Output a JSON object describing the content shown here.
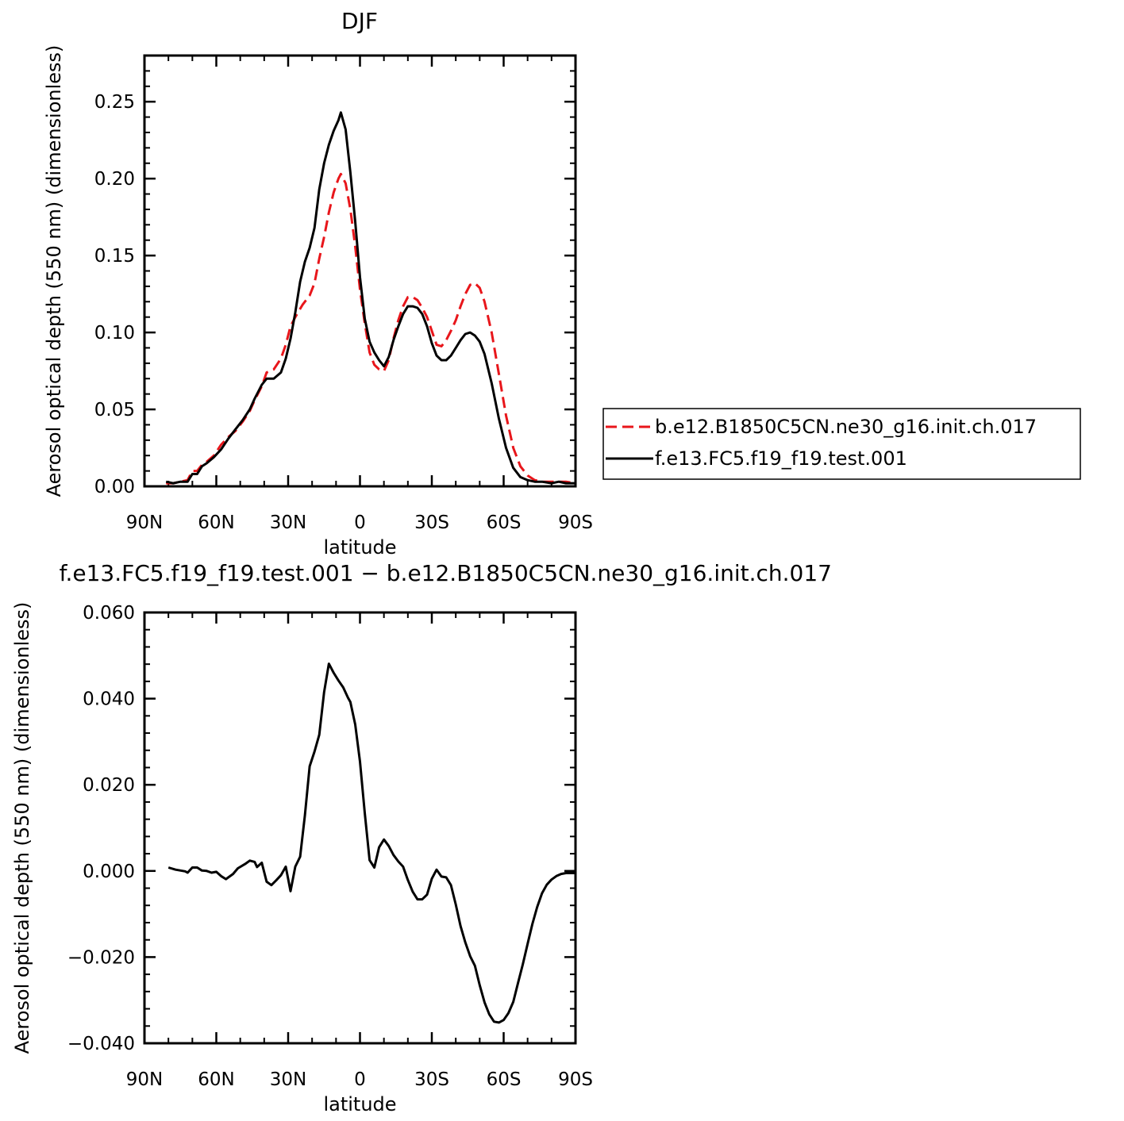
{
  "chart_data": [
    {
      "type": "line",
      "title": "DJF",
      "xlabel": "latitude",
      "ylabel": "Aerosol optical depth (550 nm) (dimensionless)",
      "xlim": [
        90,
        -90
      ],
      "ylim": [
        0,
        0.28
      ],
      "x_ticks": [
        90,
        60,
        30,
        0,
        -30,
        -60,
        -90
      ],
      "x_tick_labels": [
        "90N",
        "60N",
        "30N",
        "0",
        "30S",
        "60S",
        "90S"
      ],
      "y_ticks": [
        0,
        0.05,
        0.1,
        0.15,
        0.2,
        0.25
      ],
      "y_tick_labels": [
        "0.00",
        "0.05",
        "0.10",
        "0.15",
        "0.20",
        "0.25"
      ],
      "legend_placement": "right",
      "series": [
        {
          "name": "b.e12.B1850C5CN.ne30_g16.init.ch.017",
          "color": "#e8161b",
          "dash": "dashed",
          "points": [
            [
              81,
              0.002
            ],
            [
              78,
              0.002
            ],
            [
              75,
              0.003
            ],
            [
              72,
              0.004
            ],
            [
              70,
              0.01
            ],
            [
              68,
              0.01
            ],
            [
              66,
              0.014
            ],
            [
              64,
              0.016
            ],
            [
              61,
              0.02
            ],
            [
              58,
              0.027
            ],
            [
              55,
              0.032
            ],
            [
              52,
              0.036
            ],
            [
              49,
              0.042
            ],
            [
              46,
              0.049
            ],
            [
              44,
              0.056
            ],
            [
              41,
              0.065
            ],
            [
              39,
              0.074
            ],
            [
              36,
              0.076
            ],
            [
              33,
              0.083
            ],
            [
              31,
              0.092
            ],
            [
              29,
              0.104
            ],
            [
              27,
              0.11
            ],
            [
              24,
              0.118
            ],
            [
              21,
              0.124
            ],
            [
              19,
              0.132
            ],
            [
              17,
              0.148
            ],
            [
              15,
              0.162
            ],
            [
              13,
              0.178
            ],
            [
              11,
              0.191
            ],
            [
              9,
              0.2
            ],
            [
              8,
              0.203
            ],
            [
              6,
              0.197
            ],
            [
              4,
              0.18
            ],
            [
              2,
              0.156
            ],
            [
              0,
              0.128
            ],
            [
              -2,
              0.106
            ],
            [
              -4,
              0.087
            ],
            [
              -6,
              0.079
            ],
            [
              -8,
              0.076
            ],
            [
              -10,
              0.075
            ],
            [
              -12,
              0.082
            ],
            [
              -14,
              0.096
            ],
            [
              -16,
              0.108
            ],
            [
              -18,
              0.117
            ],
            [
              -20,
              0.123
            ],
            [
              -22,
              0.123
            ],
            [
              -24,
              0.121
            ],
            [
              -26,
              0.116
            ],
            [
              -28,
              0.11
            ],
            [
              -30,
              0.101
            ],
            [
              -32,
              0.092
            ],
            [
              -34,
              0.091
            ],
            [
              -36,
              0.095
            ],
            [
              -38,
              0.101
            ],
            [
              -40,
              0.108
            ],
            [
              -42,
              0.117
            ],
            [
              -44,
              0.125
            ],
            [
              -46,
              0.131
            ],
            [
              -48,
              0.132
            ],
            [
              -50,
              0.129
            ],
            [
              -52,
              0.12
            ],
            [
              -55,
              0.1
            ],
            [
              -58,
              0.073
            ],
            [
              -61,
              0.046
            ],
            [
              -64,
              0.025
            ],
            [
              -67,
              0.013
            ],
            [
              -70,
              0.007
            ],
            [
              -73,
              0.004
            ],
            [
              -76,
              0.003
            ],
            [
              -80,
              0.003
            ],
            [
              -83,
              0.003
            ],
            [
              -86,
              0.003
            ],
            [
              -90,
              0.002
            ]
          ]
        },
        {
          "name": "f.e13.FC5.f19_f19.test.001",
          "color": "#000000",
          "dash": "solid",
          "points": [
            [
              81,
              0.003
            ],
            [
              78,
              0.002
            ],
            [
              75,
              0.003
            ],
            [
              72,
              0.003
            ],
            [
              70,
              0.008
            ],
            [
              68,
              0.008
            ],
            [
              66,
              0.013
            ],
            [
              64,
              0.015
            ],
            [
              61,
              0.019
            ],
            [
              58,
              0.024
            ],
            [
              55,
              0.031
            ],
            [
              52,
              0.037
            ],
            [
              49,
              0.043
            ],
            [
              46,
              0.05
            ],
            [
              44,
              0.057
            ],
            [
              41,
              0.066
            ],
            [
              39,
              0.07
            ],
            [
              36,
              0.07
            ],
            [
              33,
              0.074
            ],
            [
              31,
              0.083
            ],
            [
              29,
              0.096
            ],
            [
              27,
              0.113
            ],
            [
              25,
              0.133
            ],
            [
              23,
              0.146
            ],
            [
              21,
              0.155
            ],
            [
              19,
              0.168
            ],
            [
              17,
              0.193
            ],
            [
              15,
              0.21
            ],
            [
              13,
              0.222
            ],
            [
              11,
              0.231
            ],
            [
              9,
              0.238
            ],
            [
              8,
              0.243
            ],
            [
              6,
              0.232
            ],
            [
              4,
              0.204
            ],
            [
              2,
              0.172
            ],
            [
              0,
              0.136
            ],
            [
              -2,
              0.109
            ],
            [
              -4,
              0.094
            ],
            [
              -6,
              0.087
            ],
            [
              -8,
              0.082
            ],
            [
              -10,
              0.078
            ],
            [
              -12,
              0.084
            ],
            [
              -14,
              0.095
            ],
            [
              -16,
              0.104
            ],
            [
              -18,
              0.112
            ],
            [
              -20,
              0.117
            ],
            [
              -22,
              0.117
            ],
            [
              -24,
              0.116
            ],
            [
              -26,
              0.112
            ],
            [
              -28,
              0.104
            ],
            [
              -30,
              0.093
            ],
            [
              -32,
              0.085
            ],
            [
              -34,
              0.082
            ],
            [
              -36,
              0.082
            ],
            [
              -38,
              0.085
            ],
            [
              -40,
              0.09
            ],
            [
              -42,
              0.095
            ],
            [
              -44,
              0.099
            ],
            [
              -46,
              0.1
            ],
            [
              -48,
              0.098
            ],
            [
              -50,
              0.094
            ],
            [
              -52,
              0.086
            ],
            [
              -55,
              0.067
            ],
            [
              -58,
              0.044
            ],
            [
              -61,
              0.025
            ],
            [
              -64,
              0.012
            ],
            [
              -67,
              0.006
            ],
            [
              -70,
              0.004
            ],
            [
              -73,
              0.003
            ],
            [
              -76,
              0.003
            ],
            [
              -80,
              0.002
            ],
            [
              -83,
              0.003
            ],
            [
              -86,
              0.002
            ],
            [
              -90,
              0.002
            ]
          ]
        }
      ]
    },
    {
      "type": "line",
      "title": "f.e13.FC5.f19_f19.test.001 - b.e12.B1850C5CN.ne30_g16.init.ch.017",
      "xlabel": "latitude",
      "ylabel": "Aerosol optical depth (550 nm) (dimensionless)",
      "xlim": [
        90,
        -90
      ],
      "ylim": [
        -0.04,
        0.06
      ],
      "x_ticks": [
        90,
        60,
        30,
        0,
        -30,
        -60,
        -90
      ],
      "x_tick_labels": [
        "90N",
        "60N",
        "30N",
        "0",
        "30S",
        "60S",
        "90S"
      ],
      "y_ticks": [
        -0.04,
        -0.02,
        0,
        0.02,
        0.04,
        0.06
      ],
      "y_tick_labels": [
        "-0.040",
        "-0.020",
        "0.000",
        "0.020",
        "0.040",
        "0.060"
      ],
      "series": [
        {
          "color": "#000000",
          "dash": "solid",
          "points": [
            [
              80,
              0.0008
            ],
            [
              77,
              0.0003
            ],
            [
              73,
              -0.0001
            ],
            [
              72,
              -0.0004
            ],
            [
              70,
              0.0008
            ],
            [
              68,
              0.0008
            ],
            [
              66,
              0.0001
            ],
            [
              64,
              0.0
            ],
            [
              62,
              -0.0004
            ],
            [
              60,
              -0.0002
            ],
            [
              58,
              -0.0012
            ],
            [
              56,
              -0.0019
            ],
            [
              53,
              -0.0007
            ],
            [
              51,
              0.0006
            ],
            [
              48,
              0.0016
            ],
            [
              46,
              0.0024
            ],
            [
              44,
              0.0021
            ],
            [
              43,
              0.0009
            ],
            [
              41,
              0.0019
            ],
            [
              39,
              -0.0025
            ],
            [
              37,
              -0.0033
            ],
            [
              35,
              -0.0022
            ],
            [
              33,
              -0.001
            ],
            [
              31,
              0.001
            ],
            [
              29,
              -0.0047
            ],
            [
              27,
              0.001
            ],
            [
              25,
              0.0033
            ],
            [
              23,
              0.0129
            ],
            [
              21,
              0.0243
            ],
            [
              19,
              0.0277
            ],
            [
              17,
              0.0316
            ],
            [
              15,
              0.0415
            ],
            [
              13,
              0.0481
            ],
            [
              11,
              0.046
            ],
            [
              9,
              0.0442
            ],
            [
              7,
              0.0426
            ],
            [
              5,
              0.0402
            ],
            [
              4,
              0.0392
            ],
            [
              2,
              0.034
            ],
            [
              0,
              0.0254
            ],
            [
              -2,
              0.0135
            ],
            [
              -4,
              0.0025
            ],
            [
              -6,
              0.0008
            ],
            [
              -8,
              0.0055
            ],
            [
              -10,
              0.0073
            ],
            [
              -12,
              0.0058
            ],
            [
              -14,
              0.0037
            ],
            [
              -16,
              0.0022
            ],
            [
              -18,
              0.001
            ],
            [
              -20,
              -0.0021
            ],
            [
              -22,
              -0.0048
            ],
            [
              -24,
              -0.0066
            ],
            [
              -26,
              -0.0066
            ],
            [
              -28,
              -0.0055
            ],
            [
              -30,
              -0.0018
            ],
            [
              -32,
              0.0003
            ],
            [
              -34,
              -0.0013
            ],
            [
              -36,
              -0.0015
            ],
            [
              -38,
              -0.0033
            ],
            [
              -40,
              -0.0078
            ],
            [
              -42,
              -0.0128
            ],
            [
              -44,
              -0.0166
            ],
            [
              -46,
              -0.0198
            ],
            [
              -48,
              -0.022
            ],
            [
              -50,
              -0.0265
            ],
            [
              -52,
              -0.0305
            ],
            [
              -54,
              -0.0333
            ],
            [
              -56,
              -0.035
            ],
            [
              -58,
              -0.0352
            ],
            [
              -60,
              -0.0346
            ],
            [
              -62,
              -0.033
            ],
            [
              -64,
              -0.0304
            ],
            [
              -66,
              -0.026
            ],
            [
              -68,
              -0.0217
            ],
            [
              -70,
              -0.0169
            ],
            [
              -72,
              -0.0123
            ],
            [
              -74,
              -0.0084
            ],
            [
              -76,
              -0.0052
            ],
            [
              -78,
              -0.0032
            ],
            [
              -80,
              -0.002
            ],
            [
              -82,
              -0.0012
            ],
            [
              -84,
              -0.0007
            ],
            [
              -86,
              -0.0005
            ],
            [
              -88,
              -0.0005
            ],
            [
              -90,
              -0.0005
            ]
          ]
        }
      ]
    }
  ]
}
